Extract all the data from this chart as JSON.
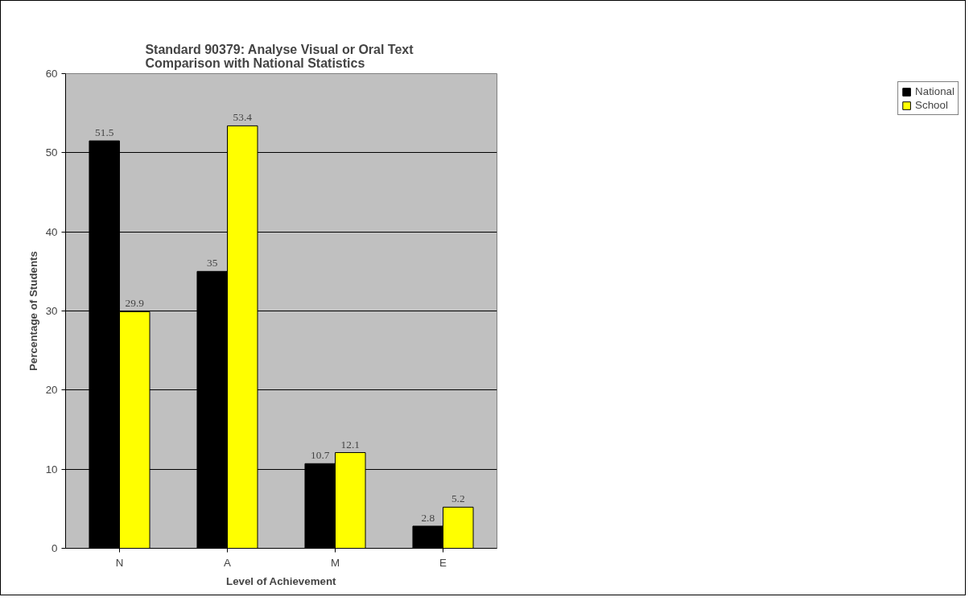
{
  "chart_data": {
    "type": "bar",
    "title": "Standard 90379:  Analyse Visual or Oral Text\nComparison with National Statistics",
    "xlabel": "Level of Achievement",
    "ylabel": "Percentage of Students",
    "categories": [
      "N",
      "A",
      "M",
      "E"
    ],
    "series": [
      {
        "name": "National",
        "color": "#000000",
        "values": [
          51.5,
          35,
          10.7,
          2.8
        ]
      },
      {
        "name": "School",
        "color": "#ffff00",
        "values": [
          29.9,
          53.4,
          12.1,
          5.2
        ]
      }
    ],
    "ylim": [
      0,
      60
    ],
    "yticks": [
      0,
      10,
      20,
      30,
      40,
      50,
      60
    ],
    "grid": "y",
    "legend": "right",
    "data_labels": true
  }
}
